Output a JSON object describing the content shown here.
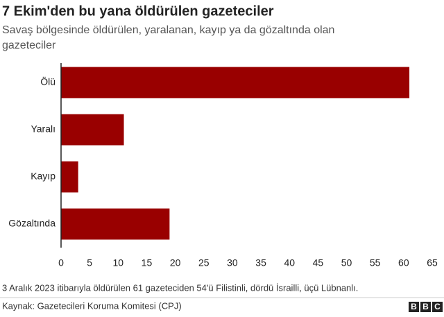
{
  "chart_data": {
    "type": "barh",
    "title": "7 Ekim'den bu yana öldürülen gazeteciler",
    "subtitle": [
      "Savaş bölgesinde öldürülen, yaralanan, kayıp ya da gözaltında olan",
      "gazeteciler"
    ],
    "categories": [
      "Ölü",
      "Yaralı",
      "Kayıp",
      "Gözaltında"
    ],
    "values": [
      61,
      11,
      3,
      19
    ],
    "color": "#990000",
    "xlim": [
      0,
      65
    ],
    "xticks": [
      0,
      5,
      10,
      15,
      20,
      25,
      30,
      35,
      40,
      45,
      50,
      55,
      60,
      65
    ],
    "grid": false,
    "note": "3 Aralık 2023 itibarıyla öldürülen 61 gazeteciden 54'ü Filistinli, dördü İsrailli, üçü Lübnanlı.",
    "source": "Kaynak: Gazetecileri Koruma Komitesi (CPJ)",
    "logo": [
      "B",
      "B",
      "C"
    ]
  }
}
